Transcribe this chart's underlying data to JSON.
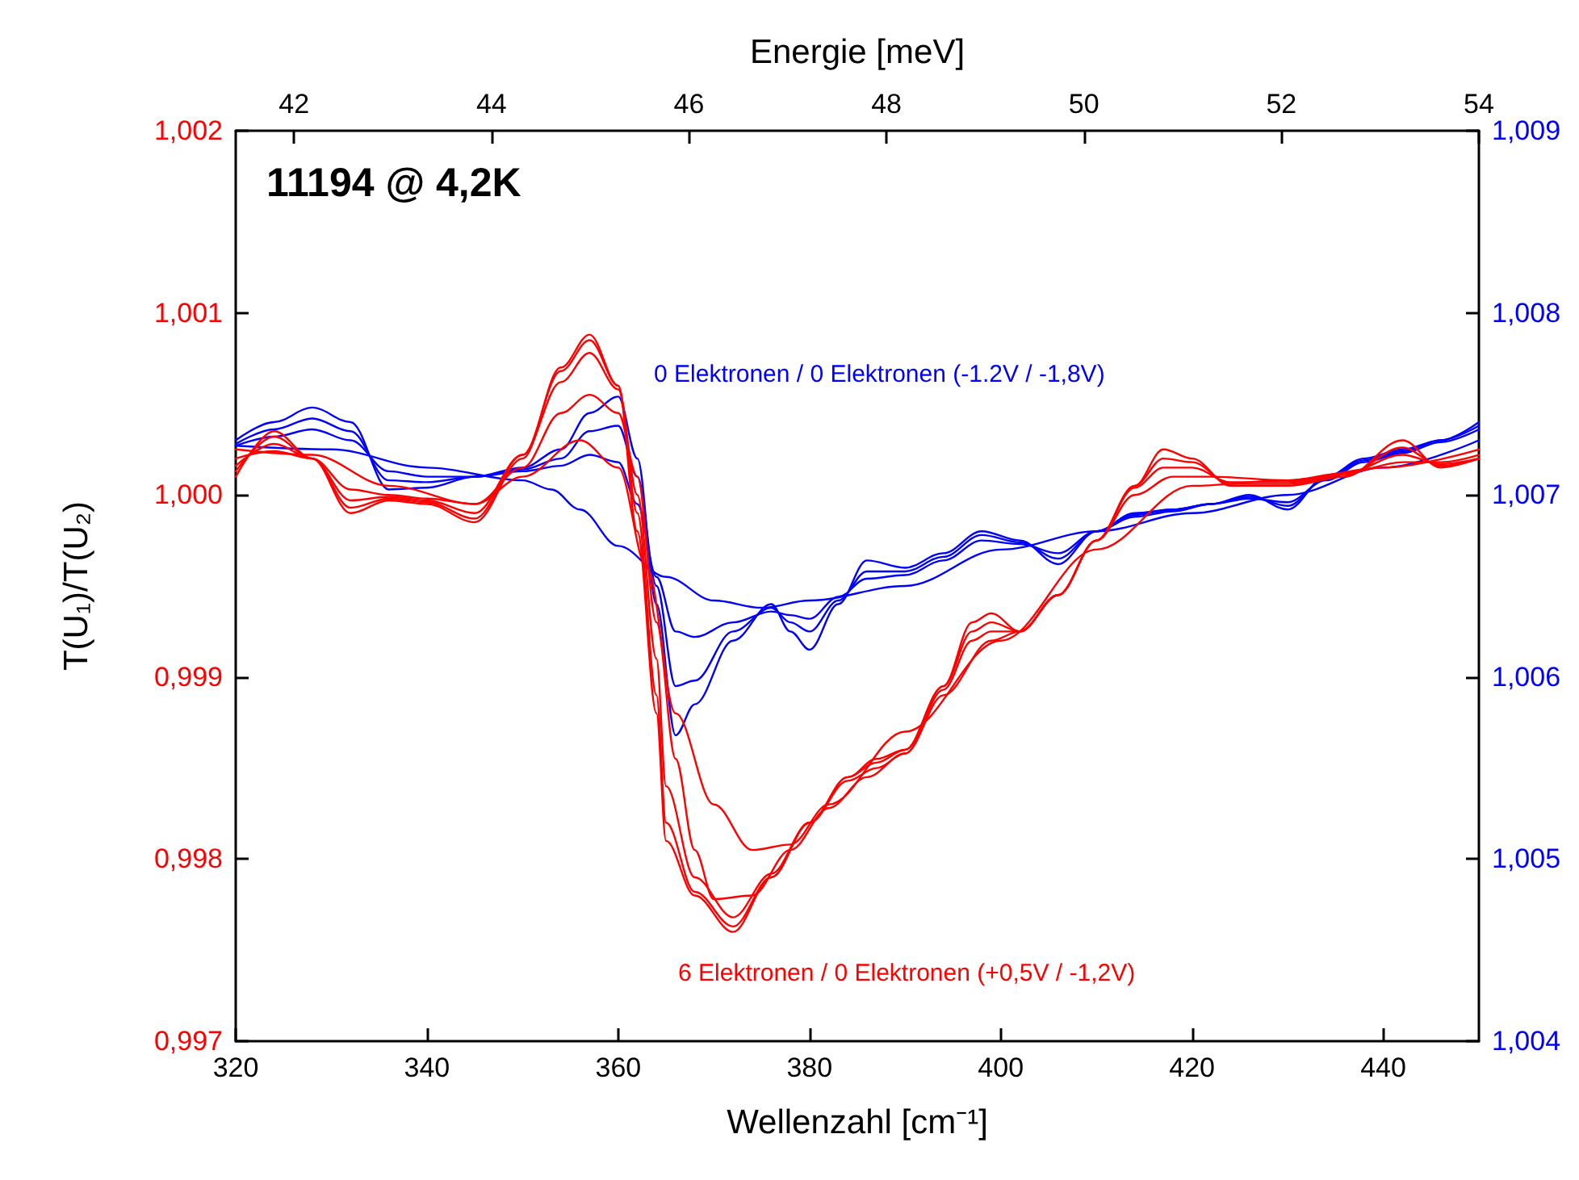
{
  "chart_data": {
    "type": "line",
    "title": "11194 @ 4,2K",
    "xlabel": "Wellenzahl [cm⁻¹]",
    "ylabel": "T(U₁)/T(U₂)",
    "x2label": "Energie [meV]",
    "marker": "none",
    "line_style": "solid",
    "grid": false,
    "xlim": [
      320,
      450
    ],
    "xticks": [
      320,
      340,
      360,
      380,
      400,
      420,
      440
    ],
    "x2lim": [
      41.41,
      54
    ],
    "x2ticks": [
      42,
      44,
      46,
      48,
      50,
      52,
      54
    ],
    "ylim": [
      0.997,
      1.002
    ],
    "yticks": [
      {
        "value": 0.997,
        "label": "0,997"
      },
      {
        "value": 0.998,
        "label": "0,998"
      },
      {
        "value": 0.999,
        "label": "0,999"
      },
      {
        "value": 1.0,
        "label": "1,000"
      },
      {
        "value": 1.001,
        "label": "1,001"
      },
      {
        "value": 1.002,
        "label": "1,002"
      }
    ],
    "y2lim": [
      1.004,
      1.009
    ],
    "y2ticks": [
      {
        "value": 1.004,
        "label": "1,004"
      },
      {
        "value": 1.005,
        "label": "1,005"
      },
      {
        "value": 1.006,
        "label": "1,006"
      },
      {
        "value": 1.007,
        "label": "1,007"
      },
      {
        "value": 1.008,
        "label": "1,008"
      },
      {
        "value": 1.009,
        "label": "1,009"
      }
    ],
    "annotations": [
      "0 Elektronen / 0 Elektronen (-1.2V / -1,8V)",
      "6 Elektronen / 0 Elektronen (+0,5V / -1,2V)"
    ],
    "series": [
      {
        "color": "#0000ff",
        "axis": "y2",
        "x": [
          320,
          324,
          328,
          332,
          336,
          340,
          345,
          350,
          354,
          357,
          360,
          362,
          364,
          366,
          368,
          372,
          376,
          378,
          380,
          383,
          386,
          390,
          394,
          398,
          402,
          406,
          410,
          414,
          418,
          422,
          426,
          430,
          434,
          438,
          442,
          446,
          450
        ],
        "values": [
          1.0073,
          1.0074,
          1.00748,
          1.0074,
          1.00703,
          1.00704,
          1.0071,
          1.00715,
          1.00725,
          1.00745,
          1.00754,
          1.0072,
          1.0064,
          1.00568,
          1.00585,
          1.0062,
          1.0064,
          1.00625,
          1.00615,
          1.0064,
          1.00664,
          1.0066,
          1.00668,
          1.0068,
          1.00675,
          1.00662,
          1.0068,
          1.0069,
          1.00692,
          1.00695,
          1.007,
          1.00692,
          1.0071,
          1.0072,
          1.00725,
          1.0073,
          1.0074
        ]
      },
      {
        "color": "#0000ff",
        "axis": "y2",
        "x": [
          320,
          324,
          328,
          332,
          336,
          340,
          345,
          350,
          354,
          357,
          360,
          362,
          364,
          366,
          368,
          372,
          376,
          378,
          380,
          383,
          386,
          390,
          394,
          398,
          402,
          406,
          410,
          414,
          418,
          422,
          426,
          430,
          434,
          438,
          442,
          446,
          450
        ],
        "values": [
          1.00728,
          1.00736,
          1.00742,
          1.00735,
          1.00708,
          1.00707,
          1.0071,
          1.00714,
          1.0072,
          1.00735,
          1.00738,
          1.0071,
          1.0065,
          1.00595,
          1.00598,
          1.00625,
          1.00638,
          1.0063,
          1.00625,
          1.00642,
          1.00658,
          1.00658,
          1.00666,
          1.00678,
          1.00674,
          1.00665,
          1.0068,
          1.00689,
          1.00692,
          1.00695,
          1.00699,
          1.00694,
          1.00709,
          1.00719,
          1.00724,
          1.0073,
          1.00738
        ]
      },
      {
        "color": "#0000ff",
        "axis": "y2",
        "x": [
          320,
          324,
          328,
          332,
          336,
          340,
          345,
          350,
          354,
          357,
          360,
          362,
          364,
          366,
          368,
          372,
          376,
          378,
          380,
          383,
          386,
          390,
          394,
          398,
          402,
          406,
          410,
          414,
          418,
          422,
          426,
          430,
          434,
          438,
          442,
          446,
          450
        ],
        "values": [
          1.00727,
          1.00732,
          1.00736,
          1.0073,
          1.00713,
          1.0071,
          1.0071,
          1.00713,
          1.00716,
          1.00722,
          1.00718,
          1.00695,
          1.00655,
          1.00625,
          1.00622,
          1.0063,
          1.00636,
          1.00634,
          1.00632,
          1.00644,
          1.00654,
          1.00656,
          1.00664,
          1.00675,
          1.00673,
          1.00668,
          1.0068,
          1.00688,
          1.00691,
          1.00695,
          1.00698,
          1.00696,
          1.00708,
          1.00718,
          1.00723,
          1.00729,
          1.00736
        ]
      },
      {
        "color": "#0000ff",
        "axis": "y2",
        "x": [
          320,
          330,
          340,
          350,
          353,
          356,
          360,
          365,
          370,
          375,
          380,
          390,
          400,
          410,
          420,
          430,
          440,
          450
        ],
        "values": [
          1.00727,
          1.00725,
          1.00715,
          1.00708,
          1.00703,
          1.00692,
          1.00672,
          1.00655,
          1.00642,
          1.00638,
          1.00642,
          1.0065,
          1.0067,
          1.0068,
          1.0069,
          1.007,
          1.00715,
          1.0073
        ]
      },
      {
        "color": "#ff0000",
        "x": [
          320,
          324,
          328,
          332,
          336,
          340,
          345,
          350,
          354,
          357,
          360,
          362,
          364,
          365,
          368,
          372,
          376,
          380,
          384,
          387,
          390,
          394,
          397,
          399,
          402,
          406,
          410,
          414,
          417,
          420,
          424,
          430,
          436,
          442,
          446,
          450
        ],
        "values": [
          1.0001,
          1.00035,
          1.0002,
          0.9999,
          0.99997,
          0.99995,
          0.99985,
          1.0002,
          1.0007,
          1.00088,
          1.0006,
          0.9998,
          0.9988,
          0.9981,
          0.9978,
          0.9976,
          0.9979,
          0.9982,
          0.99845,
          0.99855,
          0.9986,
          0.99895,
          0.9993,
          0.99935,
          0.99925,
          0.99945,
          0.99975,
          1.00005,
          1.00025,
          1.0002,
          1.00005,
          1.00005,
          1.0001,
          1.0003,
          1.00015,
          1.0002
        ]
      },
      {
        "color": "#ff0000",
        "x": [
          320,
          324,
          328,
          332,
          336,
          340,
          345,
          350,
          354,
          357,
          360,
          362,
          364,
          365,
          368,
          372,
          376,
          380,
          384,
          387,
          390,
          394,
          397,
          399,
          402,
          406,
          410,
          414,
          417,
          420,
          424,
          430,
          436,
          442,
          446,
          450
        ],
        "values": [
          1.00013,
          1.00032,
          1.0002,
          0.99993,
          0.99998,
          0.99996,
          0.99987,
          1.00022,
          1.00068,
          1.00085,
          1.0006,
          0.9999,
          0.9989,
          0.9982,
          0.99782,
          0.99763,
          0.9979,
          0.9982,
          0.99845,
          0.99853,
          0.9986,
          0.99895,
          0.99925,
          0.9993,
          0.99925,
          0.99945,
          0.99975,
          1.00005,
          1.0002,
          1.00018,
          1.00006,
          1.00006,
          1.00011,
          1.00026,
          1.00016,
          1.0002
        ]
      },
      {
        "color": "#ff0000",
        "x": [
          320,
          324,
          328,
          332,
          336,
          340,
          345,
          350,
          354,
          357,
          360,
          362,
          364,
          365,
          368,
          372,
          376,
          380,
          384,
          387,
          390,
          394,
          397,
          399,
          402,
          406,
          410,
          414,
          417,
          420,
          424,
          430,
          436,
          442,
          446,
          450
        ],
        "values": [
          1.00016,
          1.00028,
          1.0002,
          0.99997,
          0.99999,
          0.99997,
          0.9999,
          1.00022,
          1.00062,
          1.00078,
          1.00058,
          1.0,
          0.9991,
          0.9984,
          0.9979,
          0.99768,
          0.99792,
          0.9982,
          0.99843,
          0.9985,
          0.99858,
          0.99893,
          0.9992,
          0.99925,
          0.99925,
          0.99945,
          0.99975,
          1.00004,
          1.00015,
          1.00015,
          1.00007,
          1.00007,
          1.00012,
          1.00022,
          1.00017,
          1.0002
        ]
      },
      {
        "color": "#ff0000",
        "x": [
          320,
          324,
          328,
          332,
          336,
          340,
          345,
          350,
          354,
          357,
          360,
          362,
          364,
          366,
          368,
          370,
          374,
          378,
          382,
          386,
          390,
          394,
          399,
          402,
          406,
          410,
          414,
          418,
          422,
          430,
          436,
          442,
          446,
          450
        ],
        "values": [
          1.0002,
          1.00024,
          1.0002,
          1.00003,
          1.0,
          0.99998,
          0.99995,
          1.00015,
          1.00045,
          1.00055,
          1.00045,
          1.0001,
          0.9993,
          0.99855,
          0.99805,
          0.99778,
          0.9978,
          0.99805,
          0.99828,
          0.99845,
          0.99858,
          0.9989,
          0.9992,
          0.99925,
          0.99945,
          0.99975,
          1.0,
          1.0001,
          1.0001,
          1.00008,
          1.00012,
          1.00018,
          1.00018,
          1.00022
        ]
      },
      {
        "color": "#ff0000",
        "x": [
          320,
          328,
          336,
          345,
          350,
          356,
          360,
          363,
          366,
          370,
          374,
          378,
          382,
          390,
          400,
          410,
          420,
          430,
          440,
          450
        ],
        "values": [
          1.00025,
          1.00022,
          1.00005,
          0.99995,
          1.0001,
          1.0003,
          1.00015,
          0.9996,
          0.9988,
          0.9983,
          0.99805,
          0.99808,
          0.9983,
          0.9987,
          0.9992,
          0.9997,
          1.00005,
          1.00008,
          1.00015,
          1.00025
        ]
      }
    ]
  }
}
